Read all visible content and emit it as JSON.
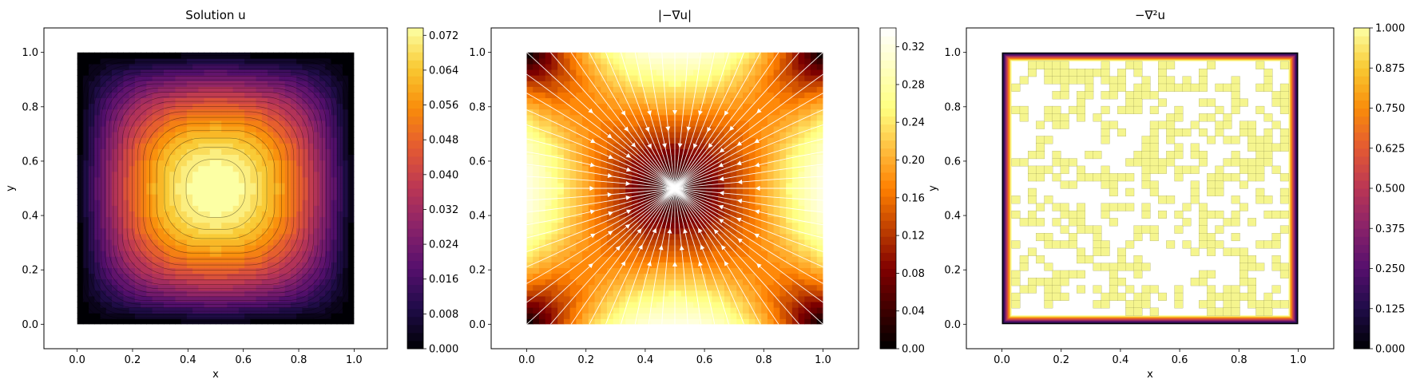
{
  "chart_data": [
    {
      "type": "heatmap",
      "title": "Solution u",
      "xlabel": "x",
      "ylabel": "y",
      "xlim": [
        -0.12,
        1.12
      ],
      "ylim": [
        -0.09,
        1.09
      ],
      "xticks": [
        "0.0",
        "0.2",
        "0.4",
        "0.6",
        "0.8",
        "1.0"
      ],
      "yticks": [
        "0.0",
        "0.2",
        "0.4",
        "0.6",
        "0.8",
        "1.0"
      ],
      "colormap": "inferno",
      "field": "u(x,y) solution of -laplacian(u)=1 with u=0 on boundary",
      "value_range": [
        0.0,
        0.0737
      ],
      "contour_lines": true,
      "colorbar": {
        "range": [
          0.0,
          0.0737
        ],
        "ticks": [
          "0.000",
          "0.008",
          "0.016",
          "0.024",
          "0.032",
          "0.040",
          "0.048",
          "0.056",
          "0.064",
          "0.072"
        ]
      },
      "grid": false
    },
    {
      "type": "heatmap",
      "title": "|−∇u|",
      "xlabel": "",
      "ylabel": "",
      "xlim": [
        -0.12,
        1.12
      ],
      "ylim": [
        -0.09,
        1.09
      ],
      "xticks": [
        "0.0",
        "0.2",
        "0.4",
        "0.6",
        "0.8",
        "1.0"
      ],
      "yticks": [
        "0.0",
        "0.2",
        "0.4",
        "0.6",
        "0.8",
        "1.0"
      ],
      "colormap": "afmhot",
      "field": "gradient magnitude of u, zero at center (0.5, 0.5), maximum at edge midpoints",
      "value_range": [
        0.0,
        0.34
      ],
      "overlay": "white streamlines with arrows converging toward the center (0.5, 0.5)",
      "colorbar": {
        "range": [
          0.0,
          0.34
        ],
        "ticks": [
          "0.00",
          "0.04",
          "0.08",
          "0.12",
          "0.16",
          "0.20",
          "0.24",
          "0.28",
          "0.32"
        ]
      },
      "grid": false
    },
    {
      "type": "heatmap",
      "title": "−∇²u",
      "xlabel": "x",
      "ylabel": "y",
      "xlim": [
        -0.12,
        1.12
      ],
      "ylim": [
        -0.09,
        1.09
      ],
      "xticks": [
        "0.0",
        "0.2",
        "0.4",
        "0.6",
        "0.8",
        "1.0"
      ],
      "yticks": [
        "0.0",
        "0.2",
        "0.4",
        "0.6",
        "0.8",
        "1.0"
      ],
      "colormap": "inferno",
      "field": "approximately 1.0 in the interior with noisy patches, dropping to 0 at the boundary",
      "value_range": [
        0.0,
        1.0
      ],
      "colorbar": {
        "range": [
          0.0,
          1.0
        ],
        "ticks": [
          "0.000",
          "0.125",
          "0.250",
          "0.375",
          "0.500",
          "0.625",
          "0.750",
          "0.875",
          "1.000"
        ]
      },
      "grid": false
    }
  ]
}
